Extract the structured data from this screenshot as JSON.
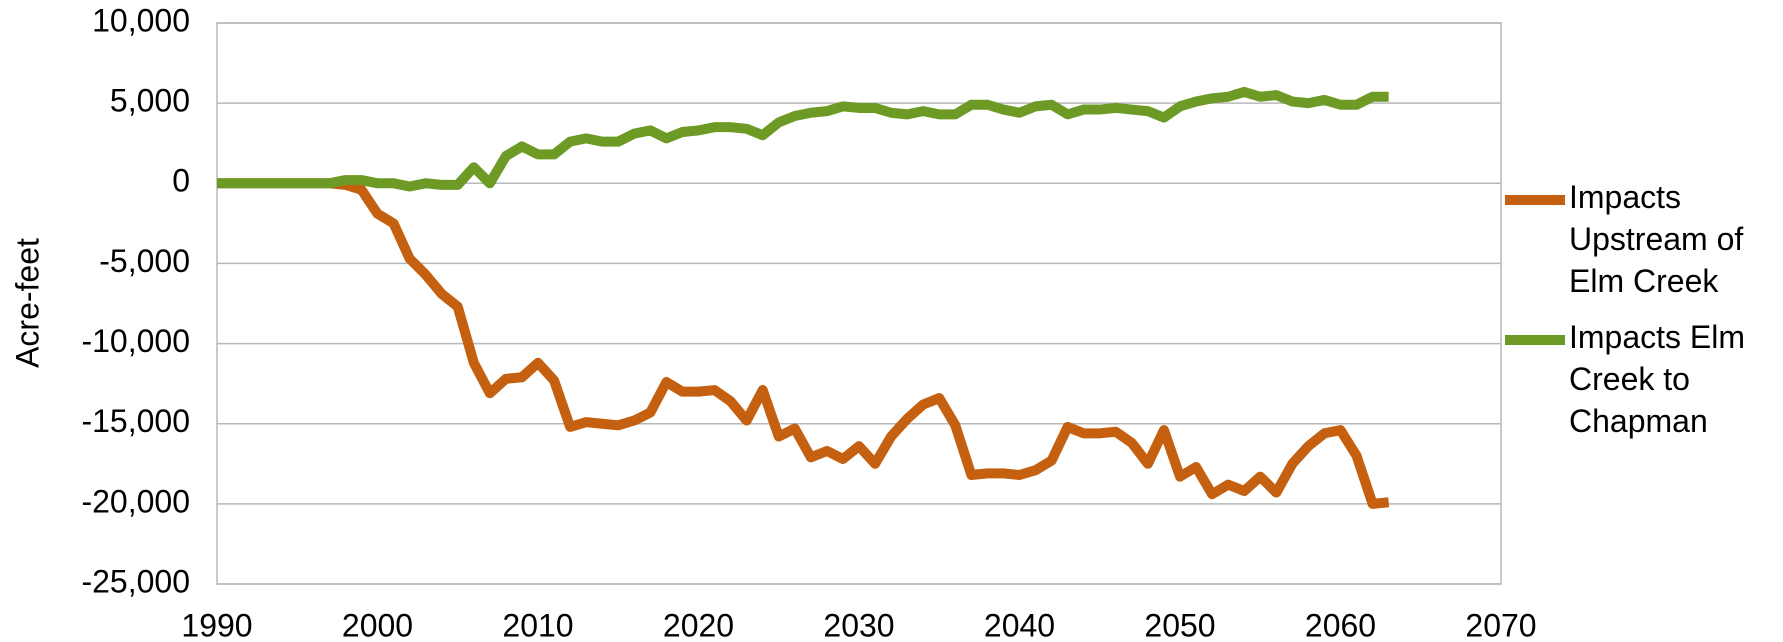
{
  "chart_data": {
    "type": "line",
    "y_label": "Acre-feet",
    "x": [
      1990,
      1991,
      1992,
      1993,
      1994,
      1995,
      1996,
      1997,
      1998,
      1999,
      2000,
      2001,
      2002,
      2003,
      2004,
      2005,
      2006,
      2007,
      2008,
      2009,
      2010,
      2011,
      2012,
      2013,
      2014,
      2015,
      2016,
      2017,
      2018,
      2019,
      2020,
      2021,
      2022,
      2023,
      2024,
      2025,
      2026,
      2027,
      2028,
      2029,
      2030,
      2031,
      2032,
      2033,
      2034,
      2035,
      2036,
      2037,
      2038,
      2039,
      2040,
      2041,
      2042,
      2043,
      2044,
      2045,
      2046,
      2047,
      2048,
      2049,
      2050,
      2051,
      2052,
      2053,
      2054,
      2055,
      2056,
      2057,
      2058,
      2059,
      2060,
      2061,
      2062,
      2063
    ],
    "series": [
      {
        "name": "Impacts Upstream of Elm Creek",
        "color": "#c4600f",
        "values": [
          0,
          0,
          0,
          0,
          0,
          0,
          0,
          0,
          -100,
          -400,
          -1900,
          -2500,
          -4700,
          -5700,
          -6900,
          -7700,
          -11200,
          -13100,
          -12200,
          -12100,
          -11200,
          -12300,
          -15200,
          -14900,
          -15000,
          -15100,
          -14800,
          -14300,
          -12400,
          -13000,
          -13000,
          -12900,
          -13600,
          -14800,
          -12900,
          -15800,
          -15300,
          -17100,
          -16700,
          -17200,
          -16400,
          -17500,
          -15800,
          -14700,
          -13800,
          -13400,
          -15100,
          -18200,
          -18100,
          -18100,
          -18200,
          -17900,
          -17300,
          -15200,
          -15600,
          -15600,
          -15500,
          -16200,
          -17500,
          -15400,
          -18300,
          -17700,
          -19400,
          -18800,
          -19200,
          -18300,
          -19300,
          -17500,
          -16400,
          -15600,
          -15400,
          -17000,
          -20000,
          -19900
        ]
      },
      {
        "name": "Impacts Elm Creek to Chapman",
        "color": "#6d9a24",
        "values": [
          0,
          0,
          0,
          0,
          0,
          0,
          0,
          0,
          200,
          200,
          0,
          0,
          -200,
          0,
          -100,
          -100,
          1000,
          0,
          1700,
          2300,
          1800,
          1800,
          2600,
          2800,
          2600,
          2600,
          3100,
          3300,
          2800,
          3200,
          3300,
          3500,
          3500,
          3400,
          3000,
          3800,
          4200,
          4400,
          4500,
          4800,
          4700,
          4700,
          4400,
          4300,
          4500,
          4300,
          4300,
          4900,
          4900,
          4600,
          4400,
          4800,
          4900,
          4300,
          4600,
          4600,
          4700,
          4600,
          4500,
          4100,
          4800,
          5100,
          5300,
          5400,
          5700,
          5400,
          5500,
          5100,
          5000,
          5200,
          4900,
          4900,
          5400,
          5400
        ]
      }
    ],
    "xlim": [
      1990,
      2070
    ],
    "xticks": [
      1990,
      2000,
      2010,
      2020,
      2030,
      2040,
      2050,
      2060,
      2070
    ],
    "ylim": [
      -25000,
      10000
    ],
    "yticks": [
      {
        "value": -25000,
        "label": "-25,000"
      },
      {
        "value": -20000,
        "label": "-20,000"
      },
      {
        "value": -15000,
        "label": "-15,000"
      },
      {
        "value": -10000,
        "label": "-10,000"
      },
      {
        "value": -5000,
        "label": "-5,000"
      },
      0,
      {
        "value": 5000,
        "label": "5,000"
      },
      {
        "value": 10000,
        "label": "10,000"
      }
    ],
    "grid": true,
    "legend": "right"
  }
}
